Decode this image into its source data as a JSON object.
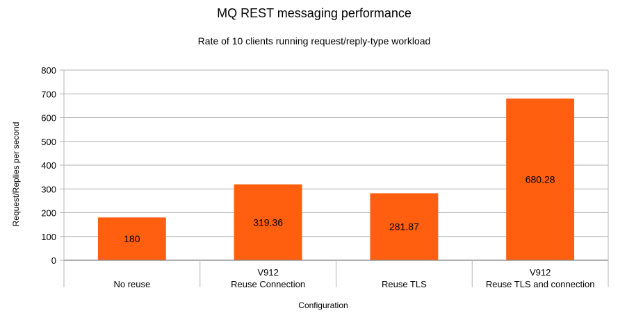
{
  "chart_data": {
    "type": "bar",
    "title": "MQ REST messaging performance",
    "subtitle": "Rate of 10 clients running request/reply-type workload",
    "xlabel": "Configuration",
    "ylabel": "Request/Replies per second",
    "ylim": [
      0,
      800
    ],
    "yticks": [
      0,
      100,
      200,
      300,
      400,
      500,
      600,
      700,
      800
    ],
    "grid": true,
    "legend": "none",
    "categories": [
      [
        "No reuse"
      ],
      [
        "V912",
        "Reuse Connection"
      ],
      [
        "Reuse TLS"
      ],
      [
        "V912",
        "Reuse TLS and connection"
      ]
    ],
    "values": [
      180,
      319.36,
      281.87,
      680.28
    ],
    "data_labels": [
      "180",
      "319.36",
      "281.87",
      "680.28"
    ],
    "bar_color": "#ff5f0f",
    "grid_color": "#b3b3b3"
  }
}
